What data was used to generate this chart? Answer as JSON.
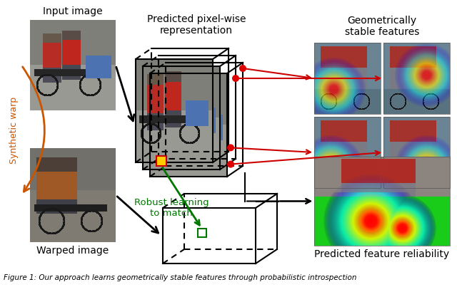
{
  "labels": {
    "input_image": "Input image",
    "predicted_repr": "Predicted pixel-wise\nrepresentation",
    "geom_stable": "Geometrically\nstable features",
    "warped_image": "Warped image",
    "synthetic_warp": "Synthetic warp",
    "robust_learning": "Robust learning\nto match",
    "predicted_reliability": "Predicted feature reliability"
  },
  "colors": {
    "background": "#ffffff",
    "text": "#000000",
    "arrow_black": "#000000",
    "arrow_red": "#cc0000",
    "arrow_orange": "#cc5500",
    "arrow_green": "#007700",
    "box_edge": "#000000",
    "red_dot": "#dd0000",
    "caption_text": "#000000"
  },
  "layout": {
    "fig_width": 6.4,
    "fig_height": 4.03,
    "dpi": 100
  }
}
